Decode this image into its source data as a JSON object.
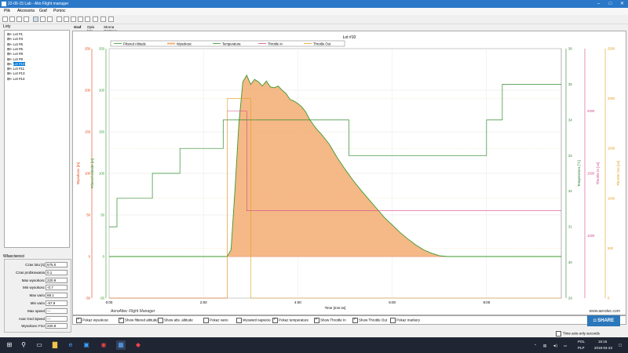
{
  "window": {
    "title": "22-06-15 Lab - Alto Flight manager"
  },
  "menu": [
    "Plik",
    "Akcesoria",
    "Graf",
    "Pomoc"
  ],
  "left_panel": {
    "title": "Loty",
    "flights": [
      "Lot #1",
      "Lot #3",
      "Lot #5",
      "Lot #6",
      "Lot #8",
      "Lot #9",
      "Lot #10",
      "Lot #11",
      "Lot #13",
      "Lot #14"
    ],
    "selected_index": 6
  },
  "props": {
    "title": "Własciwosci",
    "rows": [
      {
        "label": "Czas lotu [s]",
        "value": "575.0"
      },
      {
        "label": "Czas probkowania",
        "value": "0.1"
      },
      {
        "label": "Max wysokosc",
        "value": "220.9"
      },
      {
        "label": "Min wysokosc",
        "value": "-0.7"
      },
      {
        "label": "Max vario",
        "value": "68.1"
      },
      {
        "label": "Min vario",
        "value": "-57.9"
      },
      {
        "label": "Max speed",
        "value": "---"
      },
      {
        "label": "Avar Gnd Speed",
        "value": "---"
      },
      {
        "label": "Wysokosc FSJ",
        "value": "220.9"
      }
    ]
  },
  "tabs": [
    "Graf",
    "Opis lotu",
    "Strona startowa"
  ],
  "chart_data": {
    "type": "line",
    "title": "Lot #10",
    "legend": [
      "Filtered Altitude",
      "Wysokosc",
      "Temperatura",
      "Throttle In",
      "Throttle Out"
    ],
    "legend_placement": "top",
    "xlabel": "Time [mm:ss]",
    "x_ticks": [
      "0:00",
      "2:00",
      "4:00",
      "6:00",
      "8:00"
    ],
    "xlim_seconds": [
      0,
      575
    ],
    "axes": [
      {
        "name": "Wysokosc [m]",
        "side": "left",
        "ticks": [
          "-50",
          "0",
          "50",
          "100",
          "150",
          "200",
          "250"
        ],
        "range": [
          -50,
          250
        ],
        "color": "#e04010"
      },
      {
        "name": "Filtered altitude [m]",
        "side": "left",
        "ticks": [
          "-50",
          "0",
          "50",
          "100",
          "150",
          "200",
          "250"
        ],
        "range": [
          -50,
          250
        ],
        "color": "#2e9a2e"
      },
      {
        "name": "Temperatura [°C]",
        "side": "right",
        "ticks": [
          "29",
          "30",
          "31",
          "32",
          "33",
          "34",
          "35",
          "36"
        ],
        "range": [
          29,
          36
        ],
        "color": "#2e7d32"
      },
      {
        "name": "Throttle In [us]",
        "side": "right",
        "ticks": [
          "1000",
          "1500",
          "2000"
        ],
        "range": [
          500,
          2500
        ],
        "color": "#d14a8a"
      },
      {
        "name": "Throttle Out [us]",
        "side": "right",
        "ticks": [
          "0",
          "500",
          "1000",
          "1500",
          "2000",
          "2500"
        ],
        "range": [
          0,
          2500
        ],
        "color": "#e0a020"
      }
    ],
    "series": [
      {
        "name": "Wysokosc",
        "color": "#f4b07a",
        "x": [
          0,
          120,
          150,
          155,
          160,
          165,
          170,
          175,
          180,
          185,
          190,
          195,
          200,
          205,
          210,
          215,
          220,
          225,
          230,
          235,
          240,
          245,
          250,
          255,
          260,
          265,
          270,
          275,
          280,
          285,
          290,
          295,
          300,
          310,
          320,
          330,
          340,
          350,
          360,
          370,
          380,
          390,
          400,
          410,
          420,
          430,
          440,
          450,
          575
        ],
        "y": [
          0,
          0,
          0,
          8,
          80,
          160,
          210,
          218,
          207,
          213,
          210,
          205,
          211,
          204,
          203,
          205,
          200,
          196,
          189,
          187,
          184,
          180,
          174,
          165,
          158,
          152,
          147,
          141,
          135,
          127,
          119,
          112,
          105,
          92,
          80,
          69,
          58,
          47,
          38,
          29,
          21,
          14,
          8,
          4,
          1,
          0,
          0,
          0,
          0
        ]
      },
      {
        "name": "Temperatura",
        "color": "#2e8b2e",
        "x": [
          0,
          10,
          10,
          55,
          55,
          90,
          90,
          145,
          145,
          210,
          210,
          240,
          240,
          305,
          305,
          430,
          430,
          480,
          480,
          500,
          500,
          575
        ],
        "y": [
          31.0,
          31.0,
          31.8,
          31.8,
          32.5,
          32.5,
          33.2,
          33.2,
          34.0,
          34.0,
          34.0,
          34.0,
          34.0,
          34.0,
          33.0,
          33.0,
          33.0,
          33.0,
          34.0,
          34.0,
          35.0,
          35.0
        ]
      },
      {
        "name": "Throttle In",
        "color": "#d14a8a",
        "x": [
          0,
          150,
          150,
          175,
          175,
          575
        ],
        "y": [
          500,
          500,
          2000,
          2000,
          1200,
          1200
        ]
      },
      {
        "name": "Throttle Out",
        "color": "#e0a020",
        "x": [
          0,
          150,
          150,
          180,
          180,
          575
        ],
        "y": [
          0,
          0,
          2000,
          2000,
          0,
          0
        ]
      }
    ],
    "watermark_left": "AeroAltec Flight Manager",
    "watermark_right": "www.aerotec.com"
  },
  "checkboxes": [
    {
      "label": "Pokaz wysokosc",
      "checked": true
    },
    {
      "label": "Show filtered altitude",
      "checked": true
    },
    {
      "label": "Show abs. altitude",
      "checked": false
    },
    {
      "label": "Pokaz vario",
      "checked": false
    },
    {
      "label": "Wyswietl napiecie",
      "checked": false
    },
    {
      "label": "Pokaz temperature",
      "checked": true
    },
    {
      "label": "Show Throttle In",
      "checked": true
    },
    {
      "label": "Show Throttle Out",
      "checked": true
    },
    {
      "label": "Pokaz markery",
      "checked": false
    }
  ],
  "share_label": "SHARE",
  "time_axis_option": "Time axis-only seconds",
  "taskbar": {
    "lang_top": "POL",
    "lang_bottom": "PLP",
    "time": "15:16",
    "date": "2018-04-23"
  }
}
